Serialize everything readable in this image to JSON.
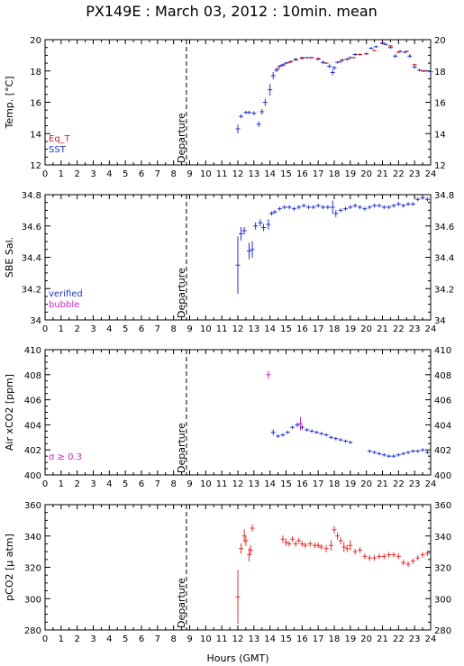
{
  "title": "PX149E : March 03, 2012 : 10min. mean",
  "xlabel": "Hours (GMT)",
  "departure_label": "Departure",
  "colors": {
    "eq_t": "#cc2222",
    "sst": "#2233cc",
    "verified": "#2233cc",
    "bubble": "#cc22cc",
    "air": "#2233cc",
    "sigma": "#cc22cc",
    "pco2": "#e03030",
    "departure_line": "#000000"
  },
  "chart_data": [
    {
      "type": "scatter",
      "id": "temp",
      "ylabel": "Temp. [°C]",
      "xlim": [
        0,
        24
      ],
      "ylim": [
        12,
        20
      ],
      "yticks": [
        12,
        14,
        16,
        18,
        20
      ],
      "departure_hour": 8.8,
      "legend": [
        "Eq_T",
        "SST"
      ],
      "series": [
        {
          "name": "SST",
          "x": [
            12,
            12.2,
            12.5,
            12.7,
            13.0,
            13.3,
            13.5,
            13.7,
            14.0,
            14.2,
            14.4,
            14.6,
            14.8,
            15.0,
            15.3,
            15.6,
            16.0,
            16.3,
            16.6,
            17.0,
            17.3,
            17.7,
            17.9,
            18.0,
            18.2,
            18.5,
            18.8,
            19.0,
            19.3,
            19.6,
            20.0,
            20.3,
            20.6,
            21.0,
            21.2,
            21.5,
            21.8,
            22.1,
            22.4,
            22.7,
            23.0,
            23.3,
            23.6,
            24.0
          ],
          "y": [
            14.3,
            15.1,
            15.35,
            15.35,
            15.3,
            14.6,
            15.4,
            16.0,
            16.8,
            17.7,
            18.05,
            18.3,
            18.4,
            18.5,
            18.6,
            18.75,
            18.85,
            18.85,
            18.85,
            18.75,
            18.55,
            18.3,
            17.9,
            18.2,
            18.55,
            18.7,
            18.75,
            18.85,
            19.05,
            19.05,
            19.1,
            19.45,
            19.55,
            19.8,
            19.7,
            19.5,
            18.95,
            19.25,
            19.2,
            18.95,
            18.25,
            18.05,
            18.0,
            17.95
          ],
          "err": [
            0.25,
            0.1,
            0.08,
            0.08,
            0.1,
            0.15,
            0.15,
            0.2,
            0.35,
            0.2,
            0.1,
            0.05,
            0.05,
            0.05,
            0.05,
            0.05,
            0.03,
            0.03,
            0.03,
            0.05,
            0.08,
            0.1,
            0.15,
            0.1,
            0.05,
            0.05,
            0.05,
            0.05,
            0.05,
            0.05,
            0.05,
            0.05,
            0.05,
            0.05,
            0.05,
            0.05,
            0.1,
            0.05,
            0.05,
            0.1,
            0.08,
            0.05,
            0.05,
            0.05
          ]
        },
        {
          "name": "Eq_T",
          "x": [
            14.5,
            14.8,
            15.2,
            15.6,
            16.0,
            16.5,
            17.0,
            17.5,
            18.4,
            18.8,
            19.2,
            19.6,
            20.0,
            20.5,
            21.0,
            21.5,
            22.0,
            22.5,
            23.0,
            23.5
          ],
          "y": [
            18.15,
            18.35,
            18.55,
            18.7,
            18.8,
            18.85,
            18.8,
            18.5,
            18.6,
            18.75,
            18.85,
            19.05,
            19.1,
            19.3,
            19.75,
            19.6,
            19.2,
            19.25,
            18.4,
            18.0
          ],
          "err": [
            0.03,
            0.03,
            0.03,
            0.03,
            0.03,
            0.03,
            0.03,
            0.03,
            0.03,
            0.03,
            0.03,
            0.03,
            0.03,
            0.03,
            0.03,
            0.03,
            0.03,
            0.03,
            0.03,
            0.03
          ]
        }
      ]
    },
    {
      "type": "scatter",
      "id": "sal",
      "ylabel": "SBE Sal.",
      "xlim": [
        0,
        24
      ],
      "ylim": [
        34,
        34.8
      ],
      "yticks": [
        34,
        34.2,
        34.4,
        34.6,
        34.8
      ],
      "yticklabels": [
        "34",
        "34.2",
        "34.4",
        "34.6",
        "34.8"
      ],
      "departure_hour": 8.8,
      "legend": [
        "verified",
        "bubble"
      ],
      "series": [
        {
          "name": "verified",
          "x": [
            12.0,
            12.2,
            12.4,
            12.7,
            12.9,
            13.1,
            13.4,
            13.6,
            13.9,
            14.1,
            14.3,
            14.6,
            14.9,
            15.2,
            15.5,
            15.8,
            16.1,
            16.4,
            16.7,
            17.0,
            17.3,
            17.6,
            17.9,
            18.1,
            18.4,
            18.7,
            19.0,
            19.3,
            19.6,
            19.9,
            20.2,
            20.5,
            20.8,
            21.1,
            21.4,
            21.7,
            22.0,
            22.3,
            22.6,
            22.9,
            23.2,
            23.5,
            23.8
          ],
          "y": [
            34.35,
            34.55,
            34.57,
            34.44,
            34.45,
            34.6,
            34.62,
            34.59,
            34.61,
            34.68,
            34.69,
            34.71,
            34.72,
            34.72,
            34.71,
            34.72,
            34.73,
            34.72,
            34.72,
            34.73,
            34.72,
            34.72,
            34.72,
            34.68,
            34.7,
            34.71,
            34.72,
            34.73,
            34.72,
            34.71,
            34.72,
            34.73,
            34.73,
            34.72,
            34.72,
            34.73,
            34.74,
            34.73,
            34.74,
            34.74,
            34.77,
            34.78,
            34.77
          ],
          "err": [
            0.18,
            0.04,
            0.02,
            0.05,
            0.05,
            0.02,
            0.02,
            0.02,
            0.03,
            0.01,
            0.01,
            0.01,
            0.01,
            0.01,
            0.01,
            0.01,
            0.01,
            0.01,
            0.01,
            0.01,
            0.01,
            0.01,
            0.04,
            0.02,
            0.01,
            0.01,
            0.01,
            0.01,
            0.01,
            0.01,
            0.01,
            0.01,
            0.01,
            0.01,
            0.01,
            0.01,
            0.01,
            0.01,
            0.01,
            0.01,
            0.01,
            0.01,
            0.01
          ]
        }
      ]
    },
    {
      "type": "scatter",
      "id": "air",
      "ylabel": "Air xCO2 [ppm]",
      "xlim": [
        0,
        24
      ],
      "ylim": [
        400,
        410
      ],
      "yticks": [
        400,
        402,
        404,
        406,
        408,
        410
      ],
      "departure_hour": 8.8,
      "legend": [
        "σ ≥ 0.3"
      ],
      "series": [
        {
          "name": "sigma",
          "x": [
            13.9,
            15.9
          ],
          "y": [
            408.0,
            404.1
          ],
          "err": [
            0.25,
            0.5
          ]
        },
        {
          "name": "air",
          "x": [
            14.2,
            14.5,
            14.8,
            15.1,
            15.4,
            15.7,
            16.0,
            16.3,
            16.6,
            16.9,
            17.2,
            17.5,
            17.8,
            18.1,
            18.4,
            18.7,
            19.0,
            20.2,
            20.5,
            20.8,
            21.1,
            21.4,
            21.7,
            22.0,
            22.3,
            22.6,
            22.9,
            23.2,
            23.5,
            23.8
          ],
          "y": [
            403.4,
            403.1,
            403.2,
            403.4,
            403.8,
            404.0,
            403.8,
            403.6,
            403.5,
            403.4,
            403.3,
            403.2,
            403.0,
            402.9,
            402.8,
            402.7,
            402.6,
            401.9,
            401.8,
            401.7,
            401.6,
            401.5,
            401.5,
            401.6,
            401.7,
            401.8,
            401.9,
            401.9,
            402.0,
            401.8
          ],
          "err": [
            0.2,
            0.1,
            0.1,
            0.1,
            0.1,
            0.15,
            0.15,
            0.1,
            0.1,
            0.1,
            0.1,
            0.1,
            0.1,
            0.1,
            0.1,
            0.1,
            0.1,
            0.1,
            0.1,
            0.1,
            0.1,
            0.1,
            0.1,
            0.1,
            0.1,
            0.1,
            0.1,
            0.1,
            0.1,
            0.1
          ]
        }
      ]
    },
    {
      "type": "scatter",
      "id": "pco2",
      "ylabel": "pCO2 [µ atm]",
      "xlim": [
        0,
        24
      ],
      "ylim": [
        280,
        360
      ],
      "yticks": [
        280,
        300,
        320,
        340,
        360
      ],
      "departure_hour": 8.8,
      "series": [
        {
          "name": "pco2",
          "x": [
            12.0,
            12.2,
            12.4,
            12.5,
            12.7,
            12.8,
            12.9,
            14.8,
            15.0,
            15.2,
            15.4,
            15.6,
            15.8,
            16.0,
            16.2,
            16.5,
            16.8,
            17.0,
            17.2,
            17.5,
            17.8,
            18.0,
            18.2,
            18.4,
            18.6,
            18.8,
            19.0,
            19.3,
            19.6,
            19.9,
            20.2,
            20.5,
            20.8,
            21.1,
            21.4,
            21.7,
            22.0,
            22.3,
            22.6,
            22.9,
            23.2,
            23.5,
            23.8
          ],
          "y": [
            301,
            332,
            340,
            337,
            328,
            331,
            345,
            338,
            336,
            335,
            338,
            335,
            337,
            335,
            334,
            335,
            334,
            334,
            333,
            332,
            334,
            344,
            340,
            337,
            333,
            332,
            334,
            330,
            331,
            327,
            326,
            326,
            327,
            327,
            328,
            328,
            327,
            323,
            322,
            324,
            326,
            328,
            329
          ],
          "err": [
            17,
            3,
            4,
            3,
            4,
            3,
            2,
            2,
            2,
            1.5,
            1.5,
            1.5,
            1.5,
            1.5,
            1.5,
            1.5,
            1.5,
            1.5,
            1.5,
            2,
            3,
            2,
            2,
            2,
            3,
            2,
            3,
            1.5,
            1.5,
            1.5,
            1.5,
            1.5,
            1.5,
            1.5,
            1.5,
            1.5,
            1.5,
            1.5,
            1.5,
            1.5,
            1.5,
            1.5,
            1.5
          ]
        }
      ]
    }
  ]
}
